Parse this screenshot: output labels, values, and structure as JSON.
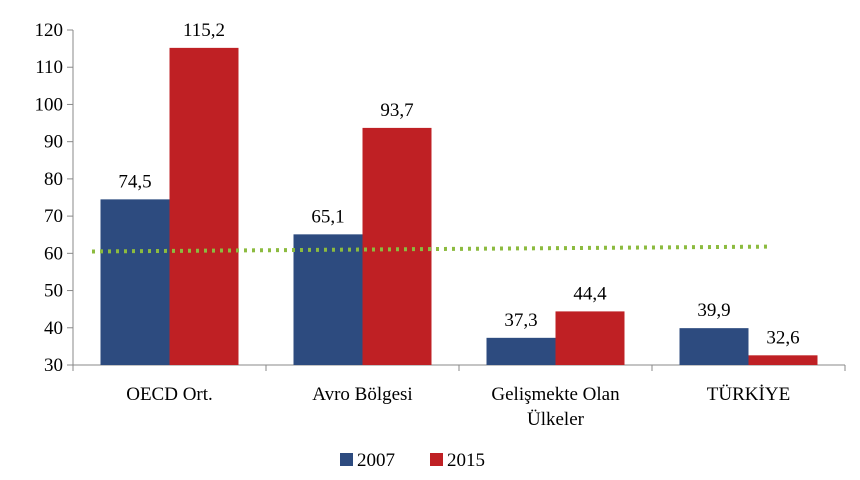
{
  "chart_data": {
    "type": "bar",
    "categories": [
      [
        "OECD Ort."
      ],
      [
        "Avro Bölgesi"
      ],
      [
        "Gelişmekte Olan",
        "Ülkeler"
      ],
      [
        "TÜRKİYE"
      ]
    ],
    "series": [
      {
        "name": "2007",
        "values": [
          74.5,
          65.1,
          37.3,
          39.9
        ],
        "labels": [
          "74,5",
          "65,1",
          "37,3",
          "39,9"
        ],
        "color": "#2d4b7f"
      },
      {
        "name": "2015",
        "values": [
          115.2,
          93.7,
          44.4,
          32.6
        ],
        "labels": [
          "115,2",
          "93,7",
          "44,4",
          "32,6"
        ],
        "color": "#bf2024"
      }
    ],
    "reference_line": {
      "from": 60.5,
      "to": 61.8,
      "color": "#8cbb3f",
      "style": "dotted"
    },
    "ylim": [
      30,
      120
    ],
    "yticks": [
      30,
      40,
      50,
      60,
      70,
      80,
      90,
      100,
      110,
      120
    ],
    "grid": false,
    "legend_position": "bottom",
    "title": "",
    "xlabel": "",
    "ylabel": ""
  }
}
